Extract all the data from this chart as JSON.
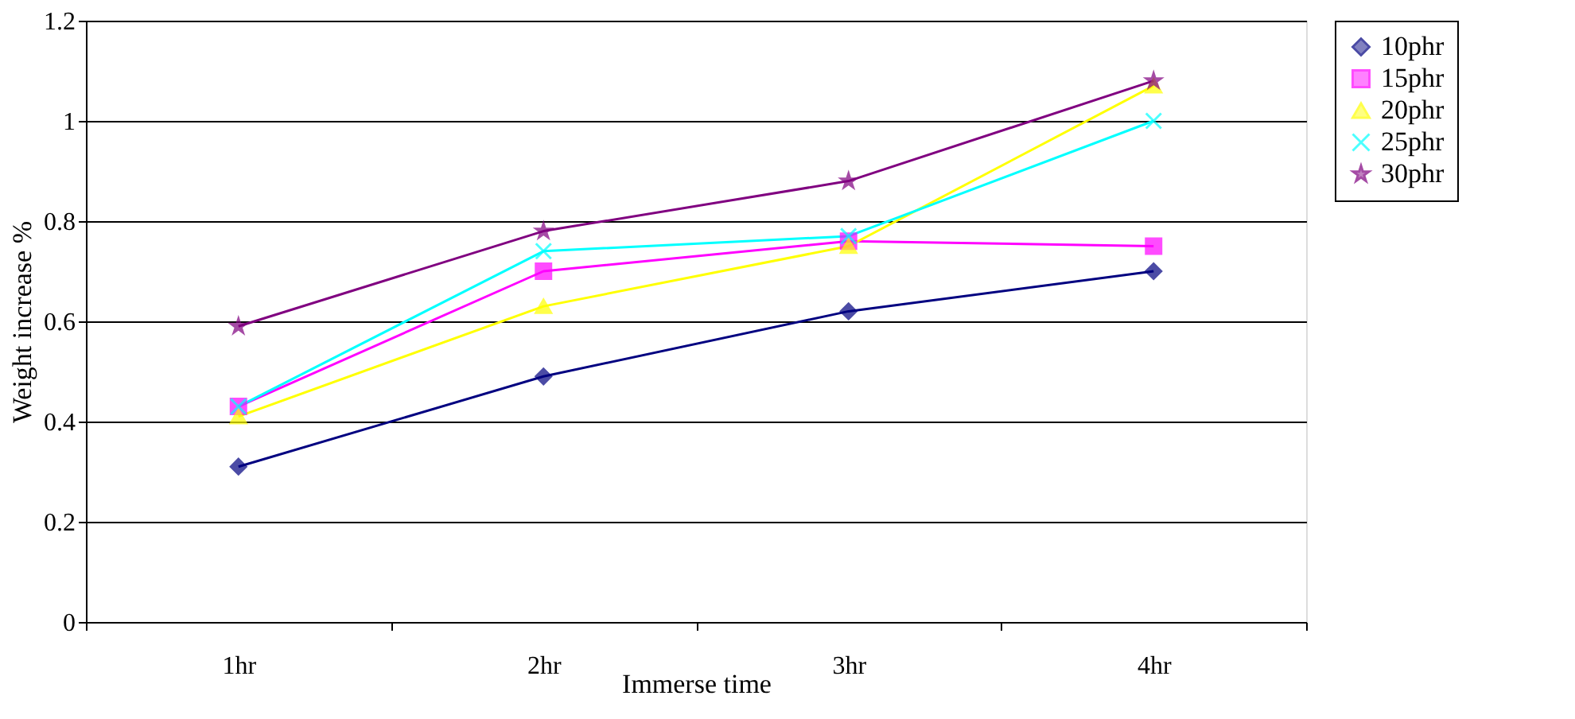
{
  "chart_data": {
    "type": "line",
    "xlabel": "Immerse time",
    "ylabel": "Weight increase %",
    "categories": [
      "1hr",
      "2hr",
      "3hr",
      "4hr"
    ],
    "ylim": [
      0,
      1.2
    ],
    "yticks": [
      {
        "value": 0,
        "label": "0"
      },
      0.2,
      0.4,
      0.6,
      0.8,
      {
        "value": 1,
        "label": "1"
      },
      1.2
    ],
    "grid": "y",
    "legend": "right",
    "series": [
      {
        "name": "10phr",
        "color": "#000080",
        "marker": "diamond",
        "values": [
          0.31,
          0.49,
          0.62,
          0.7
        ]
      },
      {
        "name": "15phr",
        "color": "#ff00ff",
        "marker": "square",
        "values": [
          0.43,
          0.7,
          0.76,
          0.75
        ]
      },
      {
        "name": "20phr",
        "color": "#ffff00",
        "marker": "triangle",
        "values": [
          0.41,
          0.63,
          0.75,
          1.07
        ]
      },
      {
        "name": "25phr",
        "color": "#00ffff",
        "marker": "cross",
        "values": [
          0.43,
          0.74,
          0.77,
          1.0
        ]
      },
      {
        "name": "30phr",
        "color": "#800080",
        "marker": "star",
        "values": [
          0.59,
          0.78,
          0.88,
          1.08
        ]
      }
    ]
  }
}
